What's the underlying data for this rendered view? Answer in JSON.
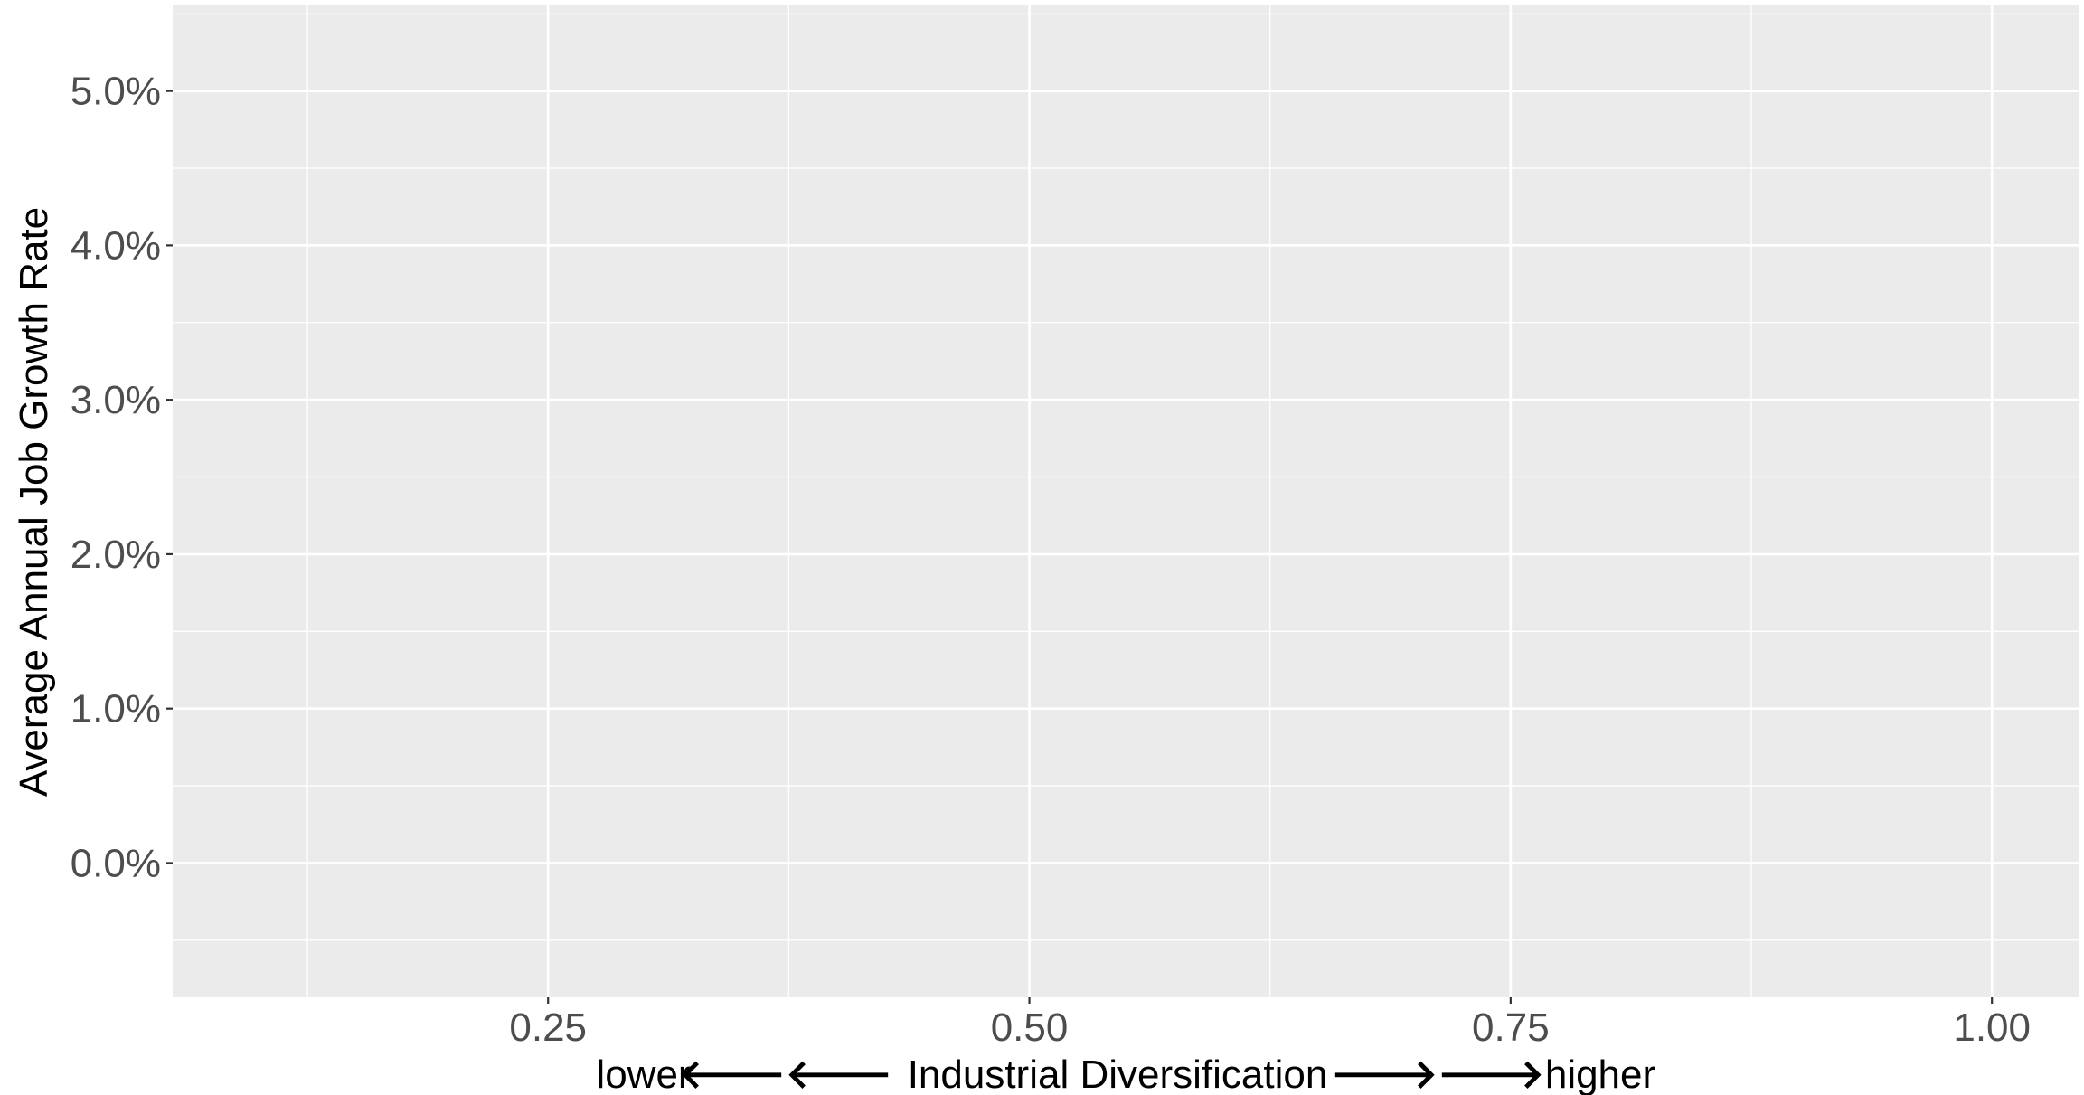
{
  "chart_data": {
    "type": "scatter",
    "x": [],
    "y": [],
    "xlim": [
      0.055,
      1.045
    ],
    "ylim": [
      -0.0087,
      0.0556
    ],
    "x_ticks": [
      0.25,
      0.5,
      0.75,
      1.0
    ],
    "x_tick_labels": [
      "0.25",
      "0.50",
      "0.75",
      "1.00"
    ],
    "y_ticks": [
      0.0,
      0.01,
      0.02,
      0.03,
      0.04,
      0.05
    ],
    "y_tick_labels": [
      "0.0%",
      "1.0%",
      "2.0%",
      "3.0%",
      "4.0%",
      "5.0%"
    ],
    "ylabel": "Average Annual Job Growth Rate",
    "xlabel": {
      "left": "lower",
      "left_arrows": "🡐🡐",
      "center": "Industrial Diversification",
      "right_arrows": "🡒🡒",
      "right": "higher"
    },
    "grid": true,
    "colors": {
      "panel_background": "#ebebeb",
      "gridline": "#ffffff",
      "tick_text": "#4d4d4d",
      "tick_mark": "#333333",
      "title_text": "#000000"
    }
  }
}
